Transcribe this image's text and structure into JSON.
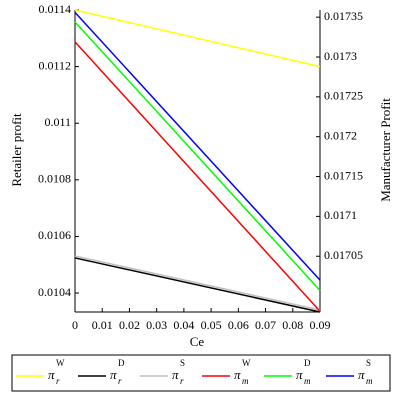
{
  "chart_data": {
    "type": "line",
    "x_label": "Ce",
    "y_label": "Retailer profit",
    "y2_label": "Manufacturer Profit",
    "x": [
      0,
      0.09
    ],
    "xlim": [
      0,
      0.09
    ],
    "xticks": [
      0,
      0.01,
      0.02,
      0.03,
      0.04,
      0.05,
      0.06,
      0.07,
      0.08,
      0.09
    ],
    "ylim": [
      0.010333,
      0.0114
    ],
    "yticks": [
      0.0104,
      0.0106,
      0.0108,
      0.011,
      0.0112,
      0.0114
    ],
    "y2lim": [
      0.01698,
      0.017359
    ],
    "y2ticks": [
      0.01705,
      0.0171,
      0.01715,
      0.0172,
      0.01725,
      0.0173,
      0.01735
    ],
    "series": [
      {
        "name": "π",
        "sub": "r",
        "sup": "W",
        "color": "#ffff00",
        "values": [
          0.0114,
          0.0112
        ]
      },
      {
        "name": "π",
        "sub": "r",
        "sup": "D",
        "color": "#000000",
        "values": [
          0.010524,
          0.010333
        ]
      },
      {
        "name": "π",
        "sub": "r",
        "sup": "S",
        "color": "#c0c0c0",
        "values": [
          0.010531,
          0.01034
        ]
      },
      {
        "name": "π",
        "sub": "m",
        "sup": "W",
        "color": "#ff0000",
        "axis": "y2",
        "values": [
          0.017319,
          0.016981
        ]
      },
      {
        "name": "π",
        "sub": "m",
        "sup": "D",
        "color": "#00ff00",
        "axis": "y2",
        "values": [
          0.017344,
          0.017007
        ]
      },
      {
        "name": "π",
        "sub": "m",
        "sup": "S",
        "color": "#0000ff",
        "axis": "y2",
        "values": [
          0.017356,
          0.01702
        ]
      }
    ]
  }
}
